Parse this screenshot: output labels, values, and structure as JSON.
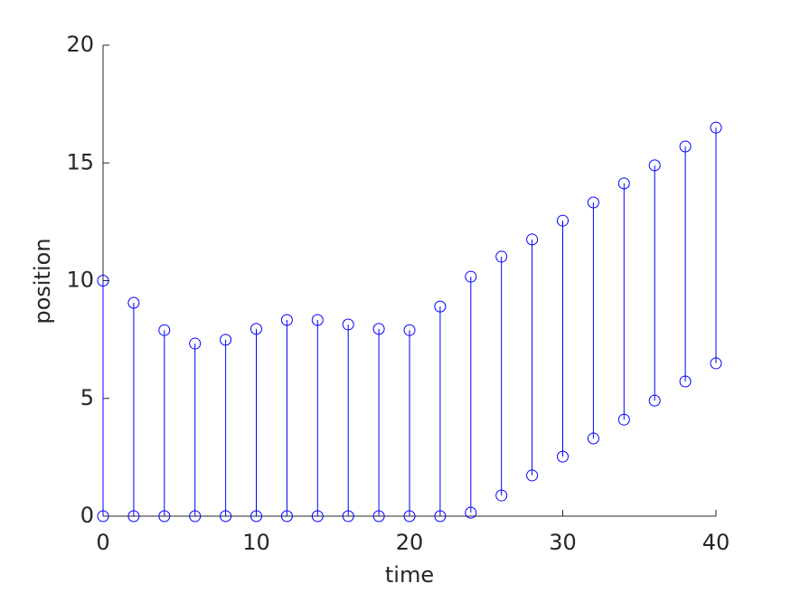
{
  "chart_data": {
    "type": "dumbbell",
    "xlabel": "time",
    "ylabel": "position",
    "x": [
      0,
      2,
      4,
      6,
      8,
      10,
      12,
      14,
      16,
      18,
      20,
      22,
      24,
      26,
      28,
      30,
      32,
      34,
      36,
      38,
      40
    ],
    "series": [
      {
        "color": "#0000ff",
        "values": [
          10.0,
          9.06,
          7.9,
          7.33,
          7.49,
          7.95,
          8.33,
          8.33,
          8.14,
          7.95,
          7.9,
          8.9,
          10.17,
          11.02,
          11.75,
          12.55,
          13.32,
          14.13,
          14.9,
          15.7,
          16.5
        ]
      },
      {
        "color": "#0000ff",
        "values": [
          0,
          0,
          0,
          0,
          0,
          0,
          0,
          0,
          0,
          0,
          0,
          0,
          0.15,
          0.88,
          1.73,
          2.53,
          3.3,
          4.1,
          4.91,
          5.72,
          6.49
        ]
      }
    ],
    "xlim": [
      0,
      40
    ],
    "xticks": [
      0,
      10,
      20,
      30,
      40
    ],
    "ylim": [
      0,
      20
    ],
    "yticks": [
      0,
      5,
      10,
      15,
      20
    ]
  }
}
